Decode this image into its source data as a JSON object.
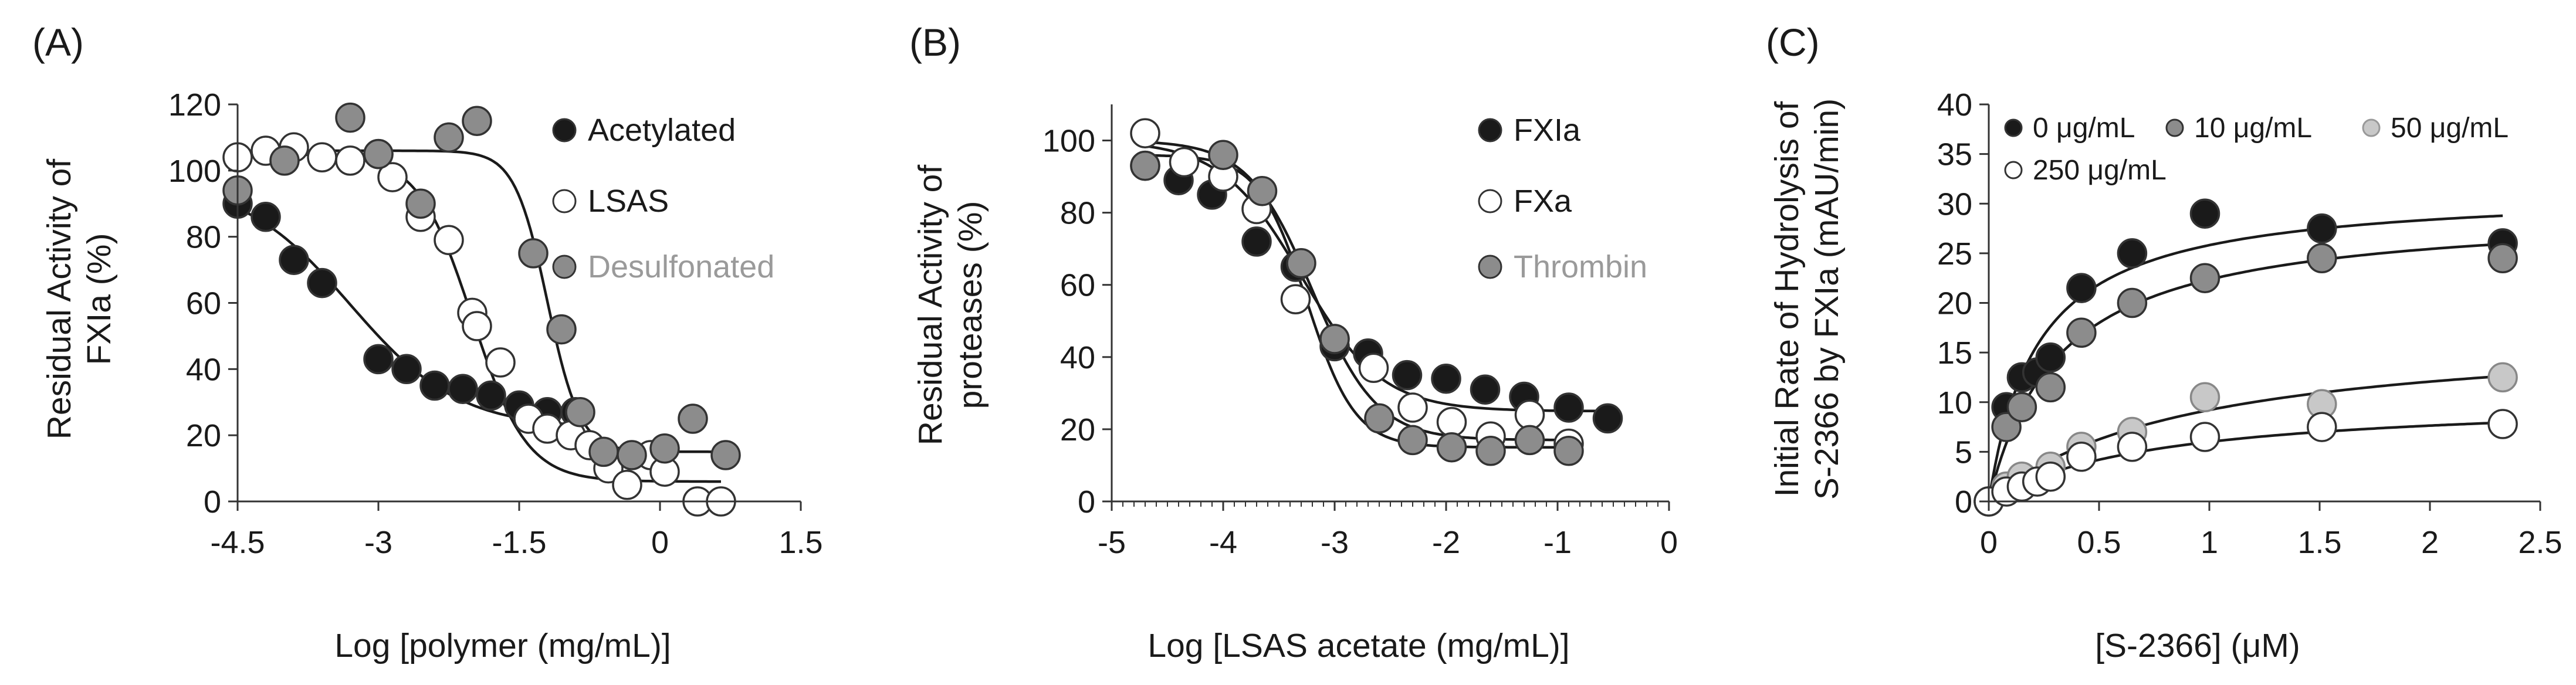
{
  "figure": {
    "panels": [
      "(A)",
      "(B)",
      "(C)"
    ]
  },
  "chart_data": [
    {
      "type": "scatter",
      "panel": "(A)",
      "title": "",
      "xlabel": "Log [polymer (mg/mL)]",
      "ylabel": [
        "Residual Activity of",
        "FXIa (%)"
      ],
      "xlim": [
        -4.5,
        1.5
      ],
      "ylim": [
        0,
        120
      ],
      "xticks": [
        "-4.5",
        "-3",
        "-1.5",
        "0",
        "1.5"
      ],
      "xtick_values": [
        -4.5,
        -3,
        -1.5,
        0,
        1.5
      ],
      "yticks": [
        "0",
        "20",
        "40",
        "60",
        "80",
        "100",
        "120"
      ],
      "ytick_values": [
        0,
        20,
        40,
        60,
        80,
        100,
        120
      ],
      "legend_position": "top-right",
      "series": [
        {
          "name": "Acetylated",
          "color": "#1a1a1a",
          "x": [
            -4.5,
            -4.2,
            -3.9,
            -3.6,
            -3.0,
            -2.7,
            -2.4,
            -2.1,
            -1.8,
            -1.5,
            -1.2,
            -0.9
          ],
          "y": [
            90,
            86,
            73,
            66,
            43,
            40,
            35,
            34,
            32,
            29,
            27,
            27
          ],
          "fit": {
            "bottom": 22,
            "top": 97,
            "ec50": -3.3,
            "hill": 0.75
          }
        },
        {
          "name": "LSAS",
          "color": "#ffffff",
          "x": [
            -4.5,
            -4.2,
            -3.9,
            -3.6,
            -3.3,
            -3.0,
            -2.85,
            -2.55,
            -2.25,
            -2.0,
            -1.95,
            -1.7,
            -1.4,
            -1.2,
            -0.95,
            -0.75,
            -0.55,
            -0.35,
            -0.1,
            0.05,
            0.4,
            0.65
          ],
          "y": [
            104,
            106,
            107,
            104,
            103,
            105,
            98,
            86,
            79,
            57,
            53,
            42,
            25,
            22,
            20,
            17,
            10,
            5,
            14,
            9,
            0,
            0
          ],
          "fit": {
            "bottom": 6,
            "top": 105,
            "ec50": -2.0,
            "hill": 1.5
          }
        },
        {
          "name": "Desulfonated",
          "color": "#8c8c8c",
          "x": [
            -4.5,
            -4.0,
            -3.3,
            -3.0,
            -2.55,
            -2.25,
            -1.95,
            -1.35,
            -1.05,
            -0.85,
            -0.6,
            -0.3,
            0.05,
            0.35,
            0.7
          ],
          "y": [
            94,
            103,
            116,
            105,
            90,
            110,
            115,
            75,
            52,
            27,
            15,
            14,
            16,
            25,
            14
          ],
          "fit": {
            "bottom": 15,
            "top": 106,
            "ec50": -1.2,
            "hill": 2.5
          }
        }
      ]
    },
    {
      "type": "scatter",
      "panel": "(B)",
      "title": "",
      "xlabel": "Log [LSAS acetate (mg/mL)]",
      "ylabel": [
        "Residual Activity of",
        "proteases (%)"
      ],
      "xlim": [
        -5,
        0
      ],
      "ylim": [
        0,
        110
      ],
      "xticks": [
        "-5",
        "-4",
        "-3",
        "-2",
        "-1",
        "0"
      ],
      "xtick_values": [
        -5,
        -4,
        -3,
        -2,
        -1,
        0
      ],
      "yticks": [
        "0",
        "20",
        "40",
        "60",
        "80",
        "100"
      ],
      "ytick_values": [
        0,
        20,
        40,
        60,
        80,
        100
      ],
      "legend_position": "top-right",
      "series": [
        {
          "name": "FXIa",
          "color": "#1a1a1a",
          "x": [
            -4.7,
            -4.4,
            -4.1,
            -3.7,
            -3.35,
            -3.0,
            -2.7,
            -2.35,
            -2.0,
            -1.65,
            -1.3,
            -0.9,
            -0.55
          ],
          "y": [
            93,
            89,
            85,
            72,
            65,
            43,
            41,
            35,
            34,
            31,
            29,
            26,
            23
          ],
          "fit": {
            "bottom": 25,
            "top": 100,
            "ec50": -3.3,
            "hill": 1.2
          }
        },
        {
          "name": "FXa",
          "color": "#ffffff",
          "x": [
            -4.7,
            -4.35,
            -4.0,
            -3.7,
            -3.35,
            -3.0,
            -2.65,
            -2.3,
            -1.95,
            -1.6,
            -1.25,
            -0.9
          ],
          "y": [
            102,
            94,
            90,
            81,
            56,
            45,
            37,
            26,
            22,
            18,
            24,
            16
          ],
          "fit": {
            "bottom": 17,
            "top": 100,
            "ec50": -3.2,
            "hill": 1.5
          }
        },
        {
          "name": "Thrombin",
          "color": "#8c8c8c",
          "x": [
            -4.7,
            -4.0,
            -3.65,
            -3.3,
            -3.0,
            -2.6,
            -2.3,
            -1.95,
            -1.6,
            -1.25,
            -0.9
          ],
          "y": [
            93,
            96,
            86,
            66,
            45,
            23,
            17,
            15,
            14,
            17,
            14
          ],
          "fit": {
            "bottom": 15,
            "top": 96,
            "ec50": -3.25,
            "hill": 2.0
          }
        }
      ]
    },
    {
      "type": "scatter",
      "panel": "(C)",
      "title": "",
      "xlabel": "[S-2366] (μM)",
      "ylabel": [
        "Initial Rate of Hydrolysis of",
        "S-2366 by FXIa  (mAU/min)"
      ],
      "xlim": [
        0,
        2.5
      ],
      "ylim": [
        0,
        40
      ],
      "xticks": [
        "0",
        "0.5",
        "1",
        "1.5",
        "2",
        "2.5"
      ],
      "xtick_values": [
        0,
        0.5,
        1,
        1.5,
        2,
        2.5
      ],
      "yticks": [
        "0",
        "5",
        "10",
        "15",
        "20",
        "25",
        "30",
        "35",
        "40"
      ],
      "ytick_values": [
        0,
        5,
        10,
        15,
        20,
        25,
        30,
        35,
        40
      ],
      "legend_position": "top",
      "series": [
        {
          "name": "0 μg/mL",
          "color": "#1a1a1a",
          "x": [
            0,
            0.08,
            0.15,
            0.22,
            0.28,
            0.42,
            0.65,
            0.98,
            1.51,
            2.33
          ],
          "y": [
            0,
            9.5,
            12.5,
            13,
            14.5,
            21.5,
            25,
            29,
            27.5,
            26
          ],
          "fit": {
            "vmax": 31.5,
            "km": 0.22
          }
        },
        {
          "name": "10 μg/mL",
          "color": "#8c8c8c",
          "x": [
            0,
            0.08,
            0.15,
            0.28,
            0.42,
            0.65,
            0.98,
            1.51,
            2.33
          ],
          "y": [
            0,
            7.5,
            9.5,
            11.5,
            17,
            20,
            22.5,
            24.5,
            24.5
          ],
          "fit": {
            "vmax": 29.5,
            "km": 0.32
          }
        },
        {
          "name": "50 μg/mL",
          "color": "#c8c8c8",
          "x": [
            0,
            0.08,
            0.15,
            0.28,
            0.42,
            0.65,
            0.98,
            1.51,
            2.33
          ],
          "y": [
            0,
            1.5,
            2.5,
            3.5,
            5.5,
            7,
            10.5,
            9.8,
            12.5
          ],
          "fit": {
            "vmax": 17.5,
            "km": 0.9
          }
        },
        {
          "name": "250 μg/mL",
          "color": "#ffffff",
          "x": [
            0,
            0.08,
            0.15,
            0.22,
            0.28,
            0.42,
            0.65,
            0.98,
            1.51,
            2.33
          ],
          "y": [
            0,
            1,
            1.5,
            2,
            2.5,
            4.5,
            5.5,
            6.5,
            7.5,
            7.8
          ],
          "fit": {
            "vmax": 10.5,
            "km": 0.75
          }
        }
      ]
    }
  ]
}
